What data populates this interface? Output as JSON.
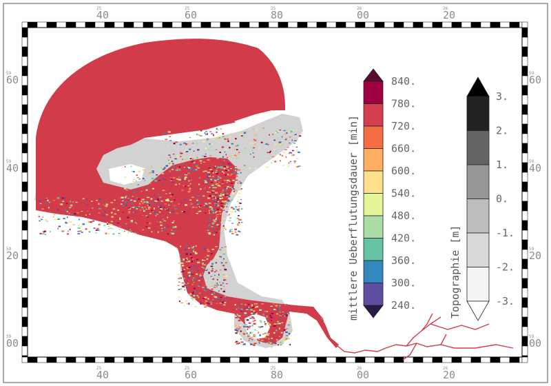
{
  "map": {
    "grid_labels": {
      "top": [
        {
          "sub": "25",
          "main": "40"
        },
        {
          "sub": "25",
          "main": "60"
        },
        {
          "sub": "25",
          "main": "80"
        },
        {
          "sub": "26",
          "main": "00"
        },
        {
          "sub": "26",
          "main": "20"
        }
      ],
      "bottom": [
        {
          "sub": "25",
          "main": "40"
        },
        {
          "sub": "25",
          "main": "60"
        },
        {
          "sub": "25",
          "main": "80"
        },
        {
          "sub": "26",
          "main": "00"
        },
        {
          "sub": "26",
          "main": "20"
        }
      ],
      "left": [
        {
          "sub": "59",
          "main": "60"
        },
        {
          "sub": "59",
          "main": "40"
        },
        {
          "sub": "59",
          "main": "20"
        },
        {
          "sub": "59",
          "main": "00"
        }
      ],
      "right": [
        {
          "sub": "59",
          "main": "60"
        },
        {
          "sub": "59",
          "main": "40"
        },
        {
          "sub": "59",
          "main": "20"
        },
        {
          "sub": "59",
          "main": "00"
        }
      ]
    },
    "colors": {
      "water": "#d13b4a",
      "land_topo": "#cfcfcf",
      "river": "#d13b4a"
    }
  },
  "colorbar_flood": {
    "title": "mittlere Ueberflutungsdauer [min]",
    "labels": [
      "840.",
      "780.",
      "720.",
      "660.",
      "600.",
      "540.",
      "480.",
      "420.",
      "360.",
      "300.",
      "240."
    ],
    "colors": [
      "#9e0142",
      "#d53e4f",
      "#f46d43",
      "#fdae61",
      "#fee08b",
      "#e6f598",
      "#abdda4",
      "#66c2a5",
      "#3288bd",
      "#5e4fa2"
    ],
    "over_color": "#5a0a2e",
    "under_color": "#2a1a4a"
  },
  "colorbar_topo": {
    "title": "Topographie [m]",
    "labels": [
      "3.",
      "2.",
      "1.",
      "0.",
      "-1.",
      "-2.",
      "-3."
    ],
    "colors": [
      "#222222",
      "#636363",
      "#969696",
      "#bdbdbd",
      "#d9d9d9",
      "#f5f5f5"
    ],
    "over_color": "#000000",
    "under_color": "#ffffff"
  }
}
